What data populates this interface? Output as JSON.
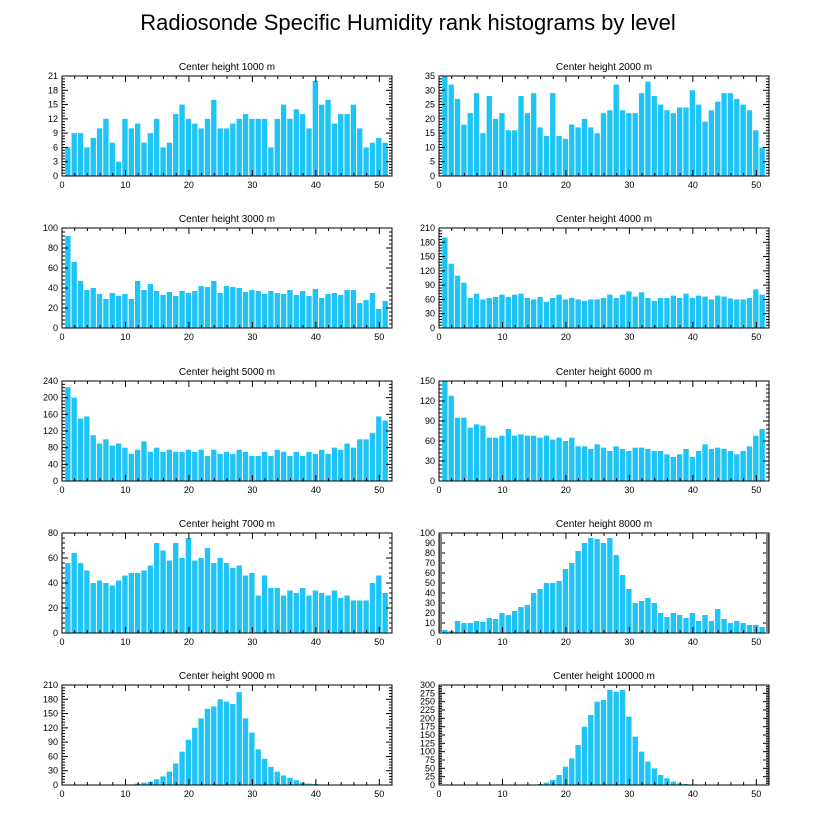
{
  "title": "Radiosonde Specific Humidity rank histograms by level",
  "colors": {
    "bar": "#1EC4F5",
    "bar_edge": "#ffffff",
    "axis": "#000000"
  },
  "chart_data": [
    {
      "type": "bar",
      "title": "Center height 1000 m",
      "x": [
        1,
        2,
        3,
        4,
        5,
        6,
        7,
        8,
        9,
        10,
        11,
        12,
        13,
        14,
        15,
        16,
        17,
        18,
        19,
        20,
        21,
        22,
        23,
        24,
        25,
        26,
        27,
        28,
        29,
        30,
        31,
        32,
        33,
        34,
        35,
        36,
        37,
        38,
        39,
        40,
        41,
        42,
        43,
        44,
        45,
        46,
        47,
        48,
        49,
        50,
        51
      ],
      "values": [
        6,
        9,
        9,
        6,
        8,
        10,
        12,
        7,
        3,
        12,
        10,
        11,
        7,
        9,
        12,
        6,
        7,
        13,
        15,
        12,
        11,
        10,
        12,
        16,
        10,
        10,
        11,
        12,
        13,
        12,
        12,
        12,
        6,
        12,
        15,
        12,
        14,
        13,
        10,
        20,
        15,
        16,
        11,
        13,
        13,
        15,
        10,
        6,
        7,
        8,
        7
      ],
      "xlim": [
        0,
        52
      ],
      "ylim": [
        0,
        21
      ],
      "xticks": [
        0,
        10,
        20,
        30,
        40,
        50
      ],
      "yticks": [
        0,
        3,
        6,
        9,
        12,
        15,
        18,
        21
      ]
    },
    {
      "type": "bar",
      "title": "Center height 2000 m",
      "x": [
        1,
        2,
        3,
        4,
        5,
        6,
        7,
        8,
        9,
        10,
        11,
        12,
        13,
        14,
        15,
        16,
        17,
        18,
        19,
        20,
        21,
        22,
        23,
        24,
        25,
        26,
        27,
        28,
        29,
        30,
        31,
        32,
        33,
        34,
        35,
        36,
        37,
        38,
        39,
        40,
        41,
        42,
        43,
        44,
        45,
        46,
        47,
        48,
        49,
        50,
        51
      ],
      "values": [
        35,
        32,
        27,
        18,
        22,
        29,
        15,
        28,
        20,
        22,
        16,
        16,
        28,
        22,
        29,
        17,
        14,
        29,
        14,
        13,
        18,
        17,
        20,
        17,
        15,
        22,
        23,
        32,
        23,
        22,
        22,
        29,
        33,
        28,
        25,
        23,
        22,
        24,
        24,
        30,
        25,
        19,
        23,
        26,
        29,
        29,
        27,
        25,
        23,
        16,
        10
      ],
      "xlim": [
        0,
        52
      ],
      "ylim": [
        0,
        35
      ],
      "xticks": [
        0,
        10,
        20,
        30,
        40,
        50
      ],
      "yticks": [
        0,
        5,
        10,
        15,
        20,
        25,
        30,
        35
      ]
    },
    {
      "type": "bar",
      "title": "Center height 3000 m",
      "x": [
        1,
        2,
        3,
        4,
        5,
        6,
        7,
        8,
        9,
        10,
        11,
        12,
        13,
        14,
        15,
        16,
        17,
        18,
        19,
        20,
        21,
        22,
        23,
        24,
        25,
        26,
        27,
        28,
        29,
        30,
        31,
        32,
        33,
        34,
        35,
        36,
        37,
        38,
        39,
        40,
        41,
        42,
        43,
        44,
        45,
        46,
        47,
        48,
        49,
        50,
        51
      ],
      "values": [
        92,
        66,
        47,
        38,
        40,
        34,
        29,
        35,
        32,
        34,
        29,
        47,
        38,
        44,
        37,
        33,
        36,
        32,
        37,
        35,
        37,
        42,
        41,
        47,
        35,
        42,
        41,
        40,
        36,
        38,
        37,
        34,
        37,
        35,
        34,
        38,
        33,
        37,
        32,
        39,
        30,
        34,
        35,
        33,
        38,
        38,
        25,
        28,
        35,
        19,
        27
      ],
      "xlim": [
        0,
        52
      ],
      "ylim": [
        0,
        100
      ],
      "xticks": [
        0,
        10,
        20,
        30,
        40,
        50
      ],
      "yticks": [
        0,
        20,
        40,
        60,
        80,
        100
      ]
    },
    {
      "type": "bar",
      "title": "Center height 4000 m",
      "x": [
        1,
        2,
        3,
        4,
        5,
        6,
        7,
        8,
        9,
        10,
        11,
        12,
        13,
        14,
        15,
        16,
        17,
        18,
        19,
        20,
        21,
        22,
        23,
        24,
        25,
        26,
        27,
        28,
        29,
        30,
        31,
        32,
        33,
        34,
        35,
        36,
        37,
        38,
        39,
        40,
        41,
        42,
        43,
        44,
        45,
        46,
        47,
        48,
        49,
        50,
        51
      ],
      "values": [
        190,
        135,
        110,
        95,
        63,
        72,
        60,
        63,
        65,
        70,
        65,
        70,
        72,
        63,
        60,
        65,
        55,
        63,
        70,
        60,
        63,
        60,
        57,
        60,
        60,
        63,
        70,
        63,
        70,
        77,
        66,
        75,
        63,
        57,
        63,
        63,
        68,
        63,
        72,
        63,
        68,
        66,
        60,
        68,
        66,
        62,
        60,
        60,
        63,
        81,
        70
      ],
      "xlim": [
        0,
        52
      ],
      "ylim": [
        0,
        210
      ],
      "xticks": [
        0,
        10,
        20,
        30,
        40,
        50
      ],
      "yticks": [
        0,
        30,
        60,
        90,
        120,
        150,
        180,
        210
      ]
    },
    {
      "type": "bar",
      "title": "Center height 5000 m",
      "x": [
        1,
        2,
        3,
        4,
        5,
        6,
        7,
        8,
        9,
        10,
        11,
        12,
        13,
        14,
        15,
        16,
        17,
        18,
        19,
        20,
        21,
        22,
        23,
        24,
        25,
        26,
        27,
        28,
        29,
        30,
        31,
        32,
        33,
        34,
        35,
        36,
        37,
        38,
        39,
        40,
        41,
        42,
        43,
        44,
        45,
        46,
        47,
        48,
        49,
        50,
        51
      ],
      "values": [
        225,
        200,
        150,
        155,
        110,
        90,
        100,
        85,
        90,
        80,
        65,
        75,
        95,
        70,
        80,
        70,
        75,
        70,
        70,
        75,
        70,
        75,
        60,
        75,
        65,
        70,
        65,
        75,
        70,
        60,
        60,
        70,
        60,
        75,
        70,
        60,
        70,
        60,
        70,
        65,
        75,
        65,
        80,
        75,
        90,
        80,
        100,
        100,
        115,
        155,
        145
      ],
      "xlim": [
        0,
        52
      ],
      "ylim": [
        0,
        240
      ],
      "xticks": [
        0,
        10,
        20,
        30,
        40,
        50
      ],
      "yticks": [
        0,
        40,
        80,
        120,
        160,
        200,
        240
      ]
    },
    {
      "type": "bar",
      "title": "Center height 6000 m",
      "x": [
        1,
        2,
        3,
        4,
        5,
        6,
        7,
        8,
        9,
        10,
        11,
        12,
        13,
        14,
        15,
        16,
        17,
        18,
        19,
        20,
        21,
        22,
        23,
        24,
        25,
        26,
        27,
        28,
        29,
        30,
        31,
        32,
        33,
        34,
        35,
        36,
        37,
        38,
        39,
        40,
        41,
        42,
        43,
        44,
        45,
        46,
        47,
        48,
        49,
        50,
        51
      ],
      "values": [
        150,
        128,
        95,
        95,
        80,
        85,
        83,
        65,
        65,
        68,
        78,
        68,
        70,
        68,
        68,
        65,
        68,
        62,
        65,
        60,
        65,
        52,
        52,
        48,
        55,
        50,
        45,
        52,
        48,
        45,
        50,
        50,
        48,
        45,
        45,
        40,
        36,
        40,
        48,
        36,
        45,
        55,
        48,
        50,
        48,
        45,
        40,
        45,
        52,
        68,
        78
      ],
      "xlim": [
        0,
        52
      ],
      "ylim": [
        0,
        150
      ],
      "xticks": [
        0,
        10,
        20,
        30,
        40,
        50
      ],
      "yticks": [
        0,
        30,
        60,
        90,
        120,
        150
      ]
    },
    {
      "type": "bar",
      "title": "Center height 7000 m",
      "x": [
        1,
        2,
        3,
        4,
        5,
        6,
        7,
        8,
        9,
        10,
        11,
        12,
        13,
        14,
        15,
        16,
        17,
        18,
        19,
        20,
        21,
        22,
        23,
        24,
        25,
        26,
        27,
        28,
        29,
        30,
        31,
        32,
        33,
        34,
        35,
        36,
        37,
        38,
        39,
        40,
        41,
        42,
        43,
        44,
        45,
        46,
        47,
        48,
        49,
        50,
        51
      ],
      "values": [
        56,
        64,
        56,
        50,
        40,
        42,
        40,
        38,
        42,
        46,
        48,
        48,
        50,
        54,
        72,
        66,
        58,
        72,
        60,
        76,
        58,
        60,
        68,
        56,
        60,
        56,
        52,
        54,
        46,
        48,
        30,
        46,
        36,
        36,
        30,
        34,
        32,
        36,
        30,
        34,
        32,
        30,
        34,
        28,
        30,
        26,
        26,
        26,
        40,
        46,
        32
      ],
      "xlim": [
        0,
        52
      ],
      "ylim": [
        0,
        80
      ],
      "xticks": [
        0,
        10,
        20,
        30,
        40,
        50
      ],
      "yticks": [
        0,
        20,
        40,
        60,
        80
      ]
    },
    {
      "type": "bar",
      "title": "Center height 8000 m",
      "x": [
        1,
        2,
        3,
        4,
        5,
        6,
        7,
        8,
        9,
        10,
        11,
        12,
        13,
        14,
        15,
        16,
        17,
        18,
        19,
        20,
        21,
        22,
        23,
        24,
        25,
        26,
        27,
        28,
        29,
        30,
        31,
        32,
        33,
        34,
        35,
        36,
        37,
        38,
        39,
        40,
        41,
        42,
        43,
        44,
        45,
        46,
        47,
        48,
        49,
        50,
        51
      ],
      "values": [
        3,
        2,
        12,
        10,
        10,
        12,
        11,
        15,
        14,
        20,
        18,
        22,
        26,
        28,
        40,
        44,
        50,
        50,
        52,
        64,
        70,
        82,
        90,
        95,
        94,
        90,
        95,
        78,
        58,
        44,
        30,
        32,
        35,
        30,
        20,
        16,
        20,
        18,
        15,
        20,
        12,
        18,
        12,
        24,
        14,
        10,
        12,
        10,
        8,
        8,
        6
      ],
      "xlim": [
        0,
        52
      ],
      "ylim": [
        0,
        100
      ],
      "xticks": [
        0,
        10,
        20,
        30,
        40,
        50
      ],
      "yticks": [
        0,
        10,
        20,
        30,
        40,
        50,
        60,
        70,
        80,
        90,
        100
      ]
    },
    {
      "type": "bar",
      "title": "Center height 9000 m",
      "x": [
        1,
        2,
        3,
        4,
        5,
        6,
        7,
        8,
        9,
        10,
        11,
        12,
        13,
        14,
        15,
        16,
        17,
        18,
        19,
        20,
        21,
        22,
        23,
        24,
        25,
        26,
        27,
        28,
        29,
        30,
        31,
        32,
        33,
        34,
        35,
        36,
        37,
        38,
        39,
        40,
        41,
        42,
        43,
        44,
        45,
        46,
        47,
        48,
        49,
        50,
        51
      ],
      "values": [
        0,
        0,
        0,
        0,
        0,
        0,
        0,
        0,
        0,
        1,
        1,
        3,
        5,
        7,
        12,
        18,
        28,
        45,
        70,
        95,
        120,
        140,
        160,
        165,
        180,
        175,
        170,
        195,
        140,
        110,
        75,
        55,
        38,
        28,
        20,
        15,
        10,
        5,
        3,
        2,
        1,
        0,
        0,
        0,
        0,
        0,
        0,
        0,
        0,
        0,
        0
      ],
      "xlim": [
        0,
        52
      ],
      "ylim": [
        0,
        210
      ],
      "xticks": [
        0,
        10,
        20,
        30,
        40,
        50
      ],
      "yticks": [
        0,
        30,
        60,
        90,
        120,
        150,
        180,
        210
      ]
    },
    {
      "type": "bar",
      "title": "Center height 10000 m",
      "x": [
        1,
        2,
        3,
        4,
        5,
        6,
        7,
        8,
        9,
        10,
        11,
        12,
        13,
        14,
        15,
        16,
        17,
        18,
        19,
        20,
        21,
        22,
        23,
        24,
        25,
        26,
        27,
        28,
        29,
        30,
        31,
        32,
        33,
        34,
        35,
        36,
        37,
        38,
        39,
        40,
        41,
        42,
        43,
        44,
        45,
        46,
        47,
        48,
        49,
        50,
        51
      ],
      "values": [
        0,
        0,
        0,
        0,
        0,
        0,
        0,
        0,
        0,
        0,
        0,
        0,
        0,
        0,
        1,
        3,
        7,
        15,
        30,
        55,
        80,
        120,
        175,
        210,
        250,
        255,
        285,
        280,
        285,
        205,
        145,
        100,
        70,
        50,
        30,
        20,
        10,
        5,
        3,
        2,
        1,
        0,
        0,
        0,
        0,
        0,
        0,
        0,
        0,
        0,
        0
      ],
      "xlim": [
        0,
        52
      ],
      "ylim": [
        0,
        300
      ],
      "xticks": [
        0,
        10,
        20,
        30,
        40,
        50
      ],
      "yticks": [
        0,
        25,
        50,
        75,
        100,
        125,
        150,
        175,
        200,
        225,
        250,
        275,
        300
      ]
    }
  ]
}
